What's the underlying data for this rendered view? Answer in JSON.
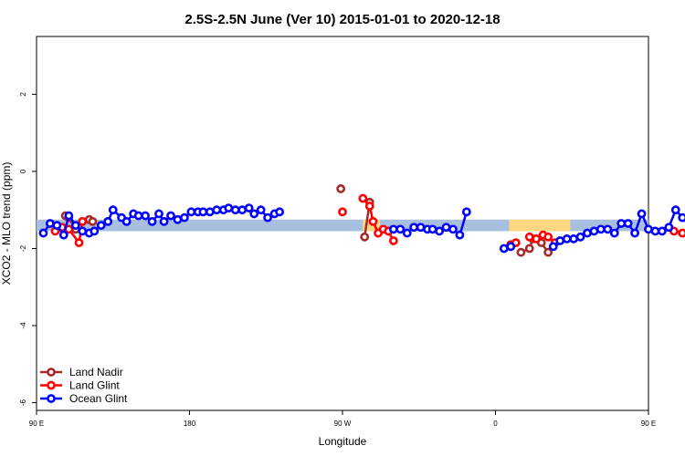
{
  "chart_data": {
    "type": "line",
    "title": "2.5S-2.5N June (Ver 10)   2015-01-01 to 2020-12-18",
    "xlabel": "Longitude",
    "ylabel": "XCO2 - MLO trend (ppm)",
    "xlim": [
      90,
      450
    ],
    "ylim": [
      -6.2,
      3.5
    ],
    "x_ticks": [
      {
        "value": 90,
        "label": "90 E"
      },
      {
        "value": 180,
        "label": "180"
      },
      {
        "value": 270,
        "label": "90 W"
      },
      {
        "value": 360,
        "label": "0"
      },
      {
        "value": 450,
        "label": "90 E"
      },
      {
        "value": 540,
        "label": "180"
      }
    ],
    "y_ticks": [
      {
        "value": 2,
        "label": "2"
      },
      {
        "value": 0,
        "label": "0"
      },
      {
        "value": -2,
        "label": "-2"
      },
      {
        "value": -4,
        "label": "-4"
      },
      {
        "value": -6,
        "label": "-6"
      }
    ],
    "bands": [
      {
        "name": "ocean",
        "color": "#a8bfe0",
        "x": [
          90,
          540
        ],
        "y": [
          -1.55,
          -1.25
        ]
      },
      {
        "name": "land",
        "color": "#fcd77f",
        "x": [
          282,
          292
        ],
        "y": [
          -1.55,
          -1.25
        ]
      },
      {
        "name": "land",
        "color": "#fcd77f",
        "x": [
          368,
          404
        ],
        "y": [
          -1.55,
          -1.25
        ]
      }
    ],
    "series": [
      {
        "name": "Land Nadir",
        "color": "#a52a2a",
        "segments": [
          [
            [
              107,
              -1.15
            ],
            [
              109,
              -1.2
            ],
            [
              113,
              -1.5
            ]
          ],
          [
            [
              121,
              -1.25
            ],
            [
              123,
              -1.3
            ]
          ],
          [
            [
              269,
              -0.45
            ]
          ],
          [
            [
              283,
              -1.7
            ],
            [
              286,
              -0.8
            ]
          ],
          [
            [
              375,
              -2.1
            ],
            [
              380,
              -2.0
            ],
            [
              382,
              -1.75
            ],
            [
              387,
              -1.85
            ],
            [
              391,
              -2.1
            ]
          ],
          [
            [
              475,
              -1.15
            ],
            [
              477,
              -1.3
            ]
          ],
          [
            [
              480,
              -1.55
            ]
          ],
          [
            [
              483,
              -1.25
            ]
          ]
        ]
      },
      {
        "name": "Land Glint",
        "color": "#ff0000",
        "segments": [
          [
            [
              101,
              -1.55
            ],
            [
              105,
              -1.45
            ],
            [
              109,
              -1.5
            ],
            [
              115,
              -1.85
            ],
            [
              117,
              -1.3
            ]
          ],
          [
            [
              270,
              -1.05
            ]
          ],
          [
            [
              282,
              -0.7
            ],
            [
              286,
              -0.9
            ],
            [
              288,
              -1.3
            ],
            [
              291,
              -1.6
            ],
            [
              294,
              -1.5
            ],
            [
              297,
              -1.55
            ],
            [
              300,
              -1.8
            ]
          ],
          [
            [
              369,
              -1.9
            ],
            [
              372,
              -1.85
            ]
          ],
          [
            [
              380,
              -1.7
            ],
            [
              384,
              -1.75
            ],
            [
              388,
              -1.65
            ],
            [
              391,
              -1.7
            ],
            [
              395,
              -1.85
            ]
          ],
          [
            [
              465,
              -1.55
            ],
            [
              470,
              -1.6
            ]
          ],
          [
            [
              475,
              -1.5
            ],
            [
              479,
              -1.85
            ],
            [
              482,
              -1.35
            ]
          ]
        ]
      },
      {
        "name": "Ocean Glint",
        "color": "#0000ff",
        "segments": [
          [
            [
              94,
              -1.6
            ],
            [
              98,
              -1.35
            ],
            [
              102,
              -1.4
            ],
            [
              106,
              -1.65
            ],
            [
              109,
              -1.15
            ],
            [
              113,
              -1.4
            ],
            [
              117,
              -1.55
            ],
            [
              121,
              -1.6
            ],
            [
              124,
              -1.55
            ],
            [
              128,
              -1.4
            ],
            [
              132,
              -1.3
            ],
            [
              135,
              -1.0
            ],
            [
              140,
              -1.2
            ],
            [
              143,
              -1.3
            ],
            [
              147,
              -1.1
            ],
            [
              150,
              -1.15
            ],
            [
              154,
              -1.15
            ],
            [
              158,
              -1.3
            ],
            [
              162,
              -1.1
            ],
            [
              165,
              -1.3
            ],
            [
              169,
              -1.15
            ],
            [
              173,
              -1.25
            ],
            [
              177,
              -1.2
            ],
            [
              181,
              -1.05
            ],
            [
              185,
              -1.05
            ],
            [
              188,
              -1.05
            ],
            [
              192,
              -1.05
            ],
            [
              196,
              -1.0
            ],
            [
              200,
              -1.0
            ],
            [
              203,
              -0.95
            ],
            [
              207,
              -1.0
            ],
            [
              211,
              -1.0
            ],
            [
              215,
              -0.95
            ],
            [
              218,
              -1.1
            ],
            [
              222,
              -1.0
            ],
            [
              226,
              -1.2
            ],
            [
              230,
              -1.1
            ],
            [
              233,
              -1.05
            ]
          ],
          [
            [
              300,
              -1.5
            ],
            [
              304,
              -1.5
            ],
            [
              308,
              -1.6
            ],
            [
              312,
              -1.45
            ],
            [
              316,
              -1.45
            ],
            [
              320,
              -1.5
            ],
            [
              323,
              -1.5
            ],
            [
              327,
              -1.55
            ],
            [
              331,
              -1.45
            ],
            [
              335,
              -1.5
            ],
            [
              339,
              -1.65
            ],
            [
              343,
              -1.05
            ]
          ],
          [
            [
              365,
              -2.0
            ],
            [
              369,
              -1.95
            ]
          ],
          [
            [
              394,
              -1.95
            ],
            [
              398,
              -1.8
            ],
            [
              402,
              -1.75
            ],
            [
              406,
              -1.75
            ],
            [
              410,
              -1.7
            ],
            [
              414,
              -1.6
            ],
            [
              418,
              -1.55
            ],
            [
              422,
              -1.5
            ],
            [
              426,
              -1.5
            ],
            [
              430,
              -1.6
            ],
            [
              434,
              -1.35
            ],
            [
              438,
              -1.35
            ],
            [
              442,
              -1.6
            ],
            [
              446,
              -1.1
            ],
            [
              450,
              -1.5
            ],
            [
              454,
              -1.55
            ],
            [
              458,
              -1.55
            ],
            [
              462,
              -1.45
            ],
            [
              466,
              -1.0
            ],
            [
              470,
              -1.2
            ],
            [
              474,
              -1.25
            ],
            [
              478,
              -1.1
            ],
            [
              482,
              -1.15
            ],
            [
              486,
              -1.15
            ],
            [
              490,
              -1.25
            ],
            [
              494,
              -1.1
            ],
            [
              498,
              -1.3
            ]
          ]
        ]
      }
    ],
    "legend_position": "bottom-left"
  }
}
